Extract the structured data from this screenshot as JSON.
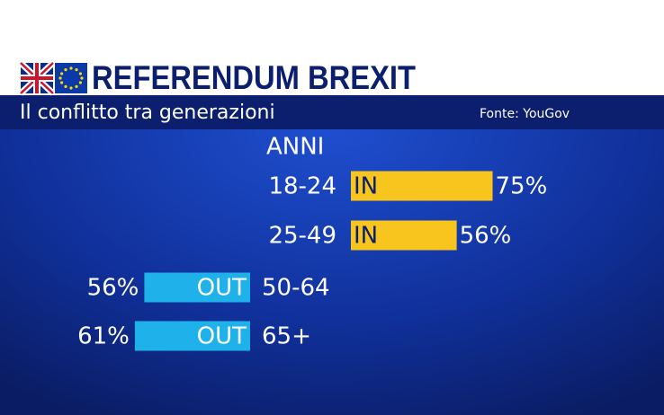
{
  "chart_data": {
    "type": "bar",
    "title": "REFERENDUM BREXIT",
    "subtitle": "Il conflitto tra generazioni",
    "source": "Fonte: YouGov",
    "axis_label": "ANNI",
    "categories": [
      "18-24",
      "25-49",
      "50-64",
      "65+"
    ],
    "series": [
      {
        "name": "IN",
        "color": "#f7c51e",
        "values": [
          75,
          56,
          null,
          null
        ],
        "value_labels": [
          "75%",
          "56%",
          null,
          null
        ]
      },
      {
        "name": "OUT",
        "color": "#1fb1ea",
        "values": [
          null,
          null,
          56,
          61
        ],
        "value_labels": [
          null,
          null,
          "56%",
          "61%"
        ]
      }
    ],
    "xlim": [
      0,
      100
    ]
  }
}
